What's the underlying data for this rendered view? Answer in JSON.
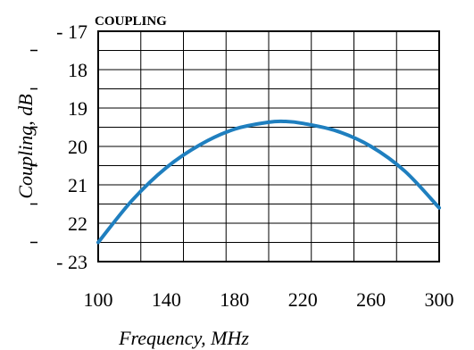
{
  "chart_data": {
    "type": "line",
    "title": "COUPLING",
    "xlabel": "Frequency, MHz",
    "ylabel": "Coupling, dB",
    "xlim": [
      100,
      300
    ],
    "ylim": [
      17,
      23
    ],
    "y_inverted": true,
    "grid": true,
    "x_ticks": [
      100,
      140,
      180,
      220,
      260,
      300
    ],
    "x_tick_labels": [
      "100",
      "140",
      "180",
      "220",
      "260",
      "300"
    ],
    "y_ticks": [
      17,
      18,
      19,
      20,
      21,
      22,
      23
    ],
    "y_tick_labels": [
      "- 17",
      "18",
      "19",
      "20",
      "21",
      "22",
      "- 23"
    ],
    "series": [
      {
        "color": "#1f7fbf",
        "x": [
          100,
          120,
          140,
          160,
          180,
          200,
          210,
          220,
          240,
          260,
          280,
          300
        ],
        "y": [
          22.5,
          21.4,
          20.55,
          19.95,
          19.55,
          19.37,
          19.35,
          19.4,
          19.6,
          20.0,
          20.65,
          21.6
        ]
      }
    ]
  }
}
